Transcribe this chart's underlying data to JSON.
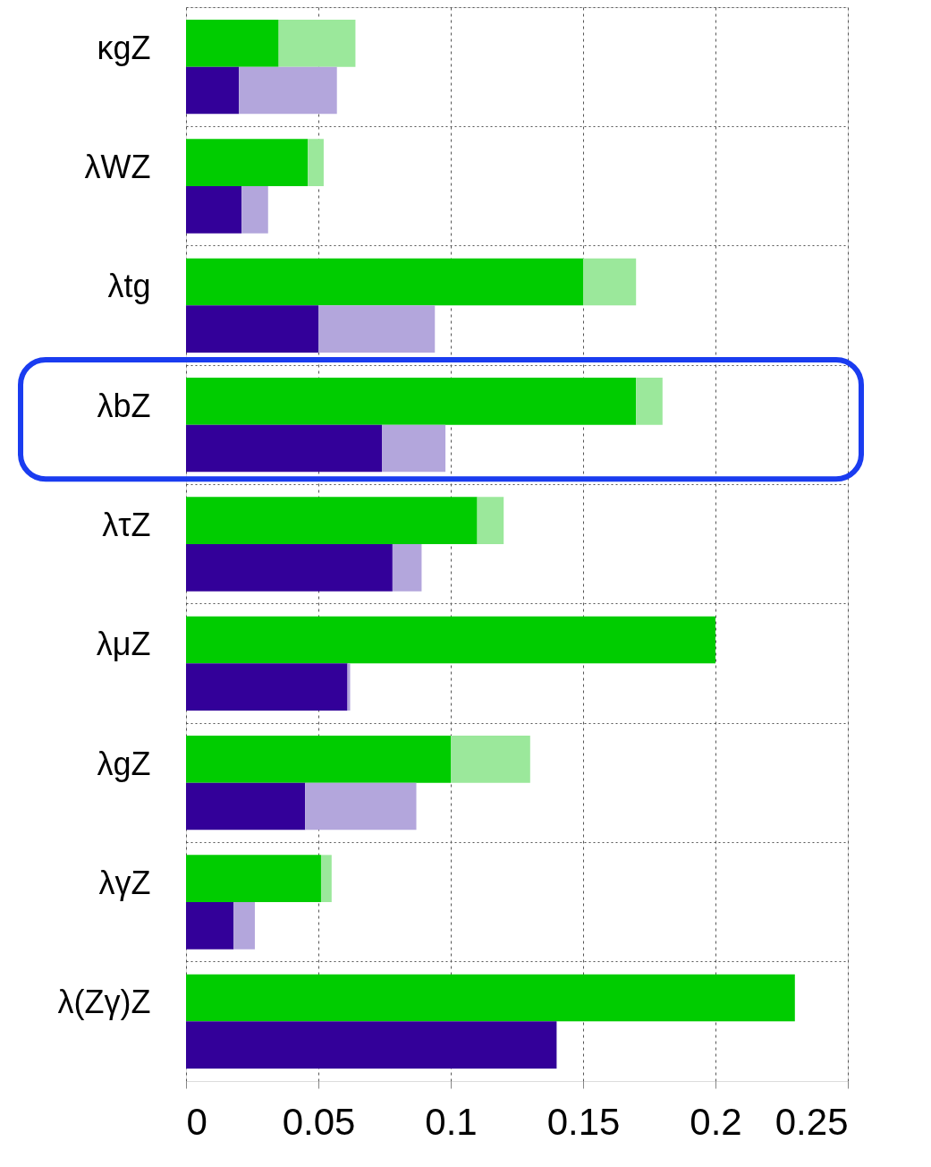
{
  "chart_data": {
    "type": "bar",
    "orientation": "horizontal",
    "stacked": true,
    "categories": [
      "κgZ",
      null,
      "λWZ",
      null,
      "λtg",
      null,
      "λbZ",
      null,
      "λτZ",
      null,
      "λμZ",
      null,
      "λgZ",
      null,
      "λγZ",
      null,
      "λ(Zγ)Z",
      null
    ],
    "series": [
      {
        "color": "#00cc00",
        "values": [
          0.035,
          null,
          0.046,
          null,
          0.15,
          null,
          0.17,
          null,
          0.11,
          null,
          0.2,
          null,
          0.1,
          null,
          0.051,
          null,
          0.23,
          null
        ]
      },
      {
        "color": "#9be89b",
        "values": [
          0.029,
          null,
          0.006,
          null,
          0.02,
          null,
          0.01,
          null,
          0.01,
          null,
          0,
          null,
          0.03,
          null,
          0.004,
          null,
          0,
          null
        ]
      },
      {
        "color": "#330099",
        "values": [
          null,
          0.02,
          null,
          0.021,
          null,
          0.05,
          null,
          0.074,
          null,
          0.078,
          null,
          0.061,
          null,
          0.045,
          null,
          0.018,
          null,
          0.14
        ]
      },
      {
        "color": "#b3a6dc",
        "values": [
          null,
          0.037,
          null,
          0.01,
          null,
          0.044,
          null,
          0.024,
          null,
          0.011,
          null,
          0.001,
          null,
          0.042,
          null,
          0.008,
          null,
          0
        ]
      }
    ],
    "xlim": [
      0,
      0.25
    ],
    "xticks": [
      0,
      0.05,
      0.1,
      0.15,
      0.2,
      0.25
    ],
    "grid": true,
    "legend": false
  }
}
